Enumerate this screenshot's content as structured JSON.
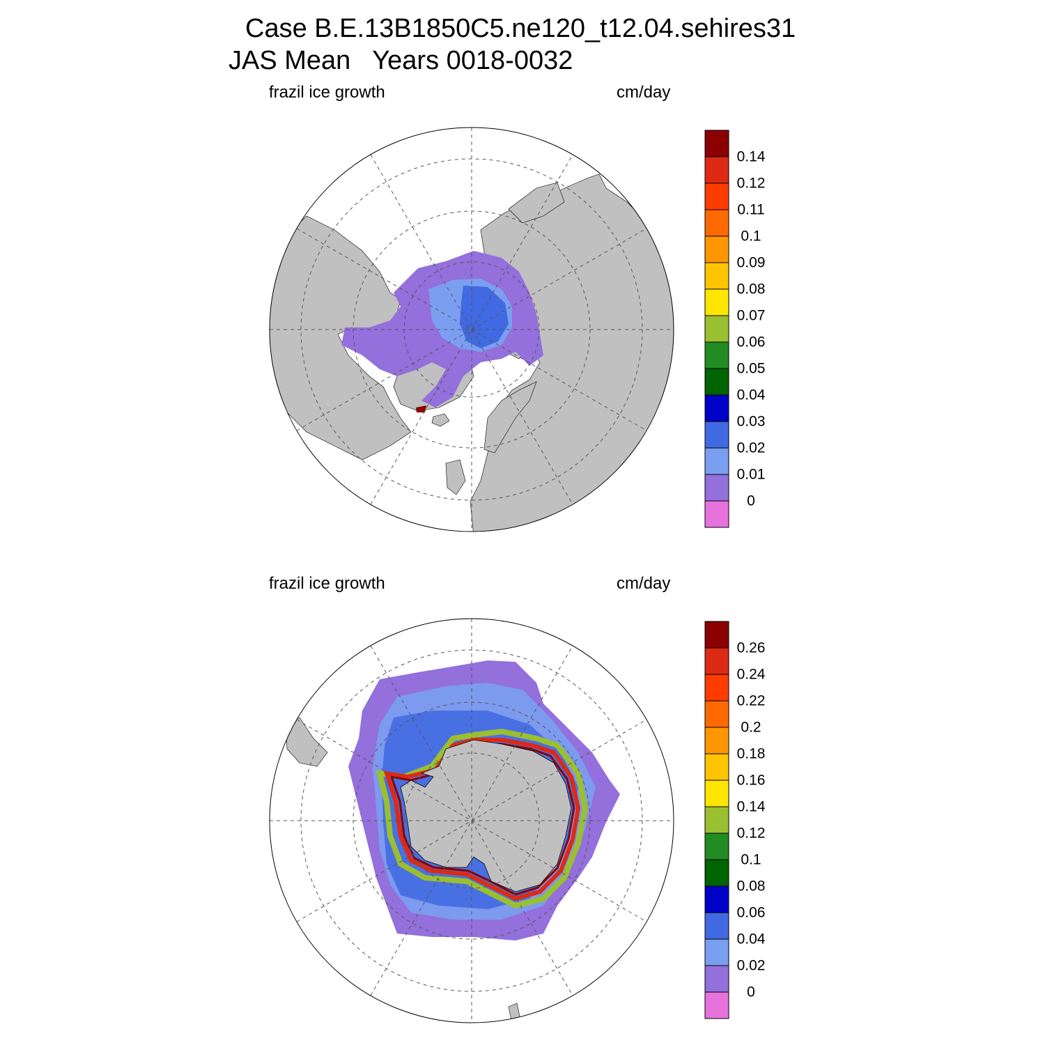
{
  "title": {
    "line1": "Case B.E.13B1850C5.ne120_t12.04.sehires31",
    "line2": "JAS Mean   Years 0018-0032"
  },
  "panels": [
    {
      "hemisphere": "north",
      "variable_label": "frazil ice growth",
      "units_label": "cm/day",
      "colorbar": {
        "labels": [
          "0.14",
          "0.12",
          "0.11",
          "0.1",
          "0.09",
          "0.08",
          "0.07",
          "0.06",
          "0.05",
          "0.04",
          "0.03",
          "0.02",
          "0.01",
          "0"
        ]
      }
    },
    {
      "hemisphere": "south",
      "variable_label": "frazil ice growth",
      "units_label": "cm/day",
      "colorbar": {
        "labels": [
          "0.26",
          "0.24",
          "0.22",
          "0.2",
          "0.18",
          "0.16",
          "0.14",
          "0.12",
          "0.1",
          "0.08",
          "0.06",
          "0.04",
          "0.02",
          "0"
        ]
      }
    }
  ],
  "colors": {
    "palette_top_to_bottom": [
      "#8b0000",
      "#dc2a14",
      "#ff3c00",
      "#ff6a00",
      "#ff9600",
      "#ffc400",
      "#ffe600",
      "#9abf30",
      "#228b22",
      "#006400",
      "#0000c8",
      "#4169e1",
      "#7a9ff0",
      "#9370db",
      "#e672dc"
    ],
    "land": "#c0c0c0",
    "ocean": "#ffffff"
  }
}
